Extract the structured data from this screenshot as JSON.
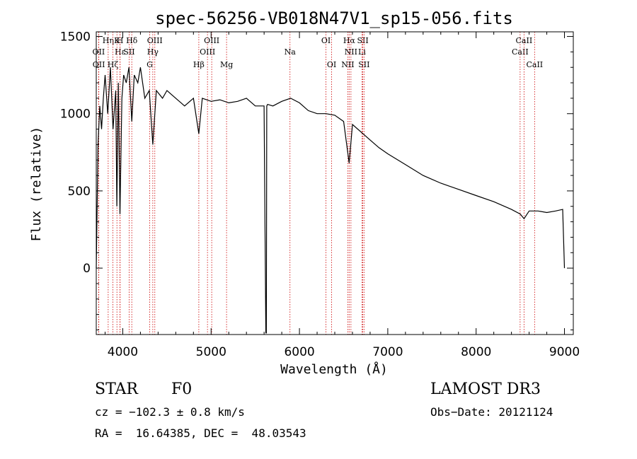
{
  "chart_data": {
    "type": "line",
    "title": "spec-56256-VB018N47V1_sp15-056.fits",
    "xlabel": "Wavelength (Å)",
    "ylabel": "Flux (relative)",
    "xlim": [
      3700,
      9100
    ],
    "ylim": [
      -430,
      1530
    ],
    "xticks": [
      4000,
      5000,
      6000,
      7000,
      8000,
      9000
    ],
    "yticks": [
      0,
      500,
      1000,
      1500
    ],
    "grid": false,
    "series": [
      {
        "name": "spectrum",
        "x": [
          3700,
          3720,
          3740,
          3760,
          3780,
          3800,
          3830,
          3860,
          3890,
          3920,
          3933,
          3950,
          3968,
          3990,
          4010,
          4040,
          4070,
          4102,
          4130,
          4170,
          4200,
          4250,
          4300,
          4340,
          4380,
          4450,
          4500,
          4600,
          4700,
          4800,
          4861,
          4900,
          5000,
          5100,
          5200,
          5300,
          5400,
          5500,
          5600,
          5620,
          5625,
          5630,
          5640,
          5700,
          5800,
          5900,
          6000,
          6100,
          6200,
          6300,
          6400,
          6500,
          6563,
          6600,
          6700,
          6800,
          6900,
          7000,
          7200,
          7400,
          7600,
          7800,
          8000,
          8200,
          8400,
          8500,
          8542,
          8600,
          8700,
          8800,
          8900,
          8980,
          9000
        ],
        "y": [
          0,
          800,
          1050,
          900,
          1100,
          1250,
          1000,
          1300,
          900,
          1150,
          400,
          1200,
          350,
          1100,
          1250,
          1200,
          1300,
          950,
          1250,
          1200,
          1300,
          1100,
          1150,
          800,
          1150,
          1100,
          1150,
          1100,
          1050,
          1100,
          870,
          1100,
          1080,
          1090,
          1070,
          1080,
          1100,
          1050,
          1050,
          -420,
          -420,
          1050,
          1060,
          1050,
          1080,
          1100,
          1070,
          1020,
          1000,
          1000,
          990,
          950,
          680,
          930,
          880,
          830,
          780,
          740,
          670,
          600,
          550,
          510,
          470,
          430,
          380,
          350,
          320,
          370,
          370,
          360,
          370,
          380,
          0
        ]
      }
    ],
    "line_markers": [
      {
        "label": "Hα",
        "x": 6563,
        "row": 1
      },
      {
        "label": "Hβ",
        "x": 4861,
        "row": 3
      },
      {
        "label": "Hγ",
        "x": 4340,
        "row": 2
      },
      {
        "label": "Hδ",
        "x": 4102,
        "row": 1
      },
      {
        "label": "Hε",
        "x": 3970,
        "row": 2
      },
      {
        "label": "K",
        "x": 3934,
        "row": 1
      },
      {
        "label": "H",
        "x": 3969,
        "row": 1
      },
      {
        "label": "G",
        "x": 4305,
        "row": 3
      },
      {
        "label": "Mg",
        "x": 5175,
        "row": 3
      },
      {
        "label": "Na",
        "x": 5893,
        "row": 2
      },
      {
        "label": "OIII",
        "x": 4363,
        "row": 1
      },
      {
        "label": "OIII",
        "x": 4959,
        "row": 2
      },
      {
        "label": "OIII",
        "x": 5007,
        "row": 1
      },
      {
        "label": "OII",
        "x": 3727,
        "row": 2
      },
      {
        "label": "OII",
        "x": 3729,
        "row": 3
      },
      {
        "label": "OI",
        "x": 6300,
        "row": 1
      },
      {
        "label": "OI",
        "x": 6364,
        "row": 3
      },
      {
        "label": "NII",
        "x": 6548,
        "row": 3
      },
      {
        "label": "NII",
        "x": 6583,
        "row": 2
      },
      {
        "label": "SII",
        "x": 6717,
        "row": 1
      },
      {
        "label": "SII",
        "x": 6731,
        "row": 3
      },
      {
        "label": "SII",
        "x": 4072,
        "row": 2
      },
      {
        "label": "Li",
        "x": 6708,
        "row": 2
      },
      {
        "label": "CaII",
        "x": 8498,
        "row": 2
      },
      {
        "label": "CaII",
        "x": 8542,
        "row": 1
      },
      {
        "label": "CaII",
        "x": 8662,
        "row": 3
      },
      {
        "label": "Hη",
        "x": 3835,
        "row": 1
      },
      {
        "label": "Hζ",
        "x": 3889,
        "row": 3
      }
    ]
  },
  "info": {
    "object_class": "STAR",
    "subclass": "F0",
    "survey": "LAMOST DR3",
    "cz": "cz = −102.3 ± 0.8 km/s",
    "obs_date": "Obs−Date: 20121124",
    "coords": "RA =  16.64385, DEC =  48.03543"
  }
}
